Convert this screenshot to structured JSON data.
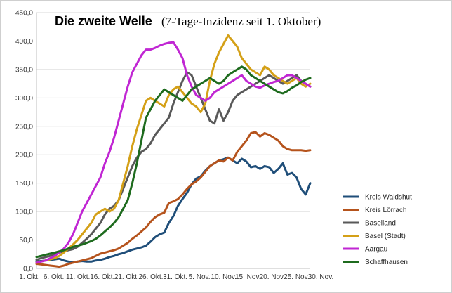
{
  "chart_data": {
    "type": "line",
    "title": "Die zweite Welle",
    "subtitle": "(7-Tage-Inzidenz seit 1. Oktober)",
    "xlabel": "",
    "ylabel": "",
    "ylim": [
      0,
      450
    ],
    "y_ticks": [
      "0,0",
      "50,0",
      "100,0",
      "150,0",
      "200,0",
      "250,0",
      "300,0",
      "350,0",
      "400,0",
      "450,0"
    ],
    "x_ticks": [
      "1. Okt.",
      "6. Okt.",
      "11. Okt.",
      "16. Okt.",
      "21. Okt.",
      "26. Okt.",
      "31. Okt.",
      "5. Nov.",
      "10. Nov.",
      "15. Nov.",
      "20. Nov.",
      "25. Nov.",
      "30. Nov."
    ],
    "x_day_range": [
      1,
      61
    ],
    "grid": true,
    "legend_position": "right",
    "series": [
      {
        "name": "Kreis Waldshut",
        "color": "#1f4e79",
        "values": [
          12,
          13,
          14,
          15,
          16,
          17,
          14,
          12,
          11,
          12,
          13,
          12,
          12,
          14,
          15,
          17,
          20,
          22,
          25,
          27,
          30,
          33,
          35,
          37,
          40,
          47,
          55,
          60,
          63,
          80,
          92,
          110,
          122,
          133,
          148,
          158,
          162,
          172,
          180,
          185,
          190,
          192,
          195,
          190,
          185,
          193,
          188,
          178,
          180,
          175,
          180,
          178,
          168,
          175,
          185,
          165,
          168,
          160,
          140,
          130,
          150
        ]
      },
      {
        "name": "Kreis Lörrach",
        "color": "#b5531c",
        "values": [
          8,
          7,
          6,
          5,
          4,
          3,
          5,
          8,
          10,
          12,
          14,
          16,
          18,
          22,
          26,
          28,
          30,
          32,
          35,
          40,
          45,
          52,
          58,
          65,
          72,
          82,
          90,
          95,
          98,
          115,
          118,
          122,
          130,
          140,
          148,
          153,
          160,
          170,
          180,
          185,
          190,
          188,
          195,
          190,
          205,
          215,
          225,
          238,
          240,
          232,
          238,
          235,
          230,
          225,
          215,
          210,
          208,
          208,
          208,
          207,
          208
        ]
      },
      {
        "name": "Baselland",
        "color": "#595959",
        "values": [
          15,
          18,
          20,
          22,
          25,
          28,
          30,
          32,
          34,
          38,
          45,
          52,
          60,
          70,
          80,
          95,
          105,
          110,
          120,
          140,
          160,
          180,
          195,
          205,
          210,
          220,
          235,
          245,
          255,
          265,
          290,
          310,
          330,
          345,
          340,
          320,
          300,
          280,
          260,
          255,
          280,
          260,
          275,
          295,
          305,
          310,
          315,
          320,
          325,
          330,
          335,
          340,
          335,
          330,
          325,
          330,
          335,
          340,
          330,
          325,
          320
        ]
      },
      {
        "name": "Basel (Stadt)",
        "color": "#d4a017",
        "values": [
          10,
          12,
          14,
          16,
          18,
          22,
          28,
          35,
          42,
          50,
          60,
          70,
          80,
          95,
          100,
          105,
          100,
          105,
          120,
          150,
          180,
          215,
          245,
          270,
          295,
          300,
          295,
          290,
          285,
          305,
          315,
          320,
          310,
          300,
          290,
          285,
          275,
          290,
          330,
          360,
          380,
          395,
          410,
          400,
          390,
          370,
          360,
          350,
          345,
          340,
          355,
          350,
          340,
          335,
          330,
          325,
          330,
          335,
          325,
          320,
          325
        ]
      },
      {
        "name": "Aargau",
        "color": "#c026d3",
        "values": [
          10,
          12,
          14,
          18,
          22,
          28,
          35,
          45,
          60,
          80,
          100,
          115,
          130,
          145,
          160,
          185,
          205,
          230,
          260,
          290,
          320,
          345,
          360,
          375,
          385,
          385,
          388,
          392,
          395,
          397,
          398,
          385,
          370,
          340,
          320,
          305,
          300,
          295,
          300,
          310,
          315,
          320,
          325,
          330,
          335,
          340,
          330,
          325,
          320,
          318,
          322,
          325,
          328,
          330,
          335,
          340,
          340,
          335,
          330,
          325,
          320
        ]
      },
      {
        "name": "Schaffhausen",
        "color": "#1e6b1e",
        "values": [
          20,
          22,
          24,
          26,
          28,
          30,
          32,
          35,
          38,
          40,
          42,
          45,
          48,
          52,
          58,
          65,
          72,
          80,
          90,
          105,
          120,
          150,
          185,
          225,
          265,
          280,
          295,
          305,
          315,
          310,
          305,
          300,
          295,
          305,
          315,
          320,
          325,
          330,
          335,
          330,
          325,
          330,
          340,
          345,
          350,
          355,
          350,
          340,
          335,
          330,
          325,
          320,
          315,
          310,
          308,
          312,
          318,
          322,
          328,
          332,
          335
        ]
      }
    ]
  }
}
